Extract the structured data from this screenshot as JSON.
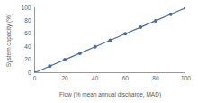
{
  "chart_data": {
    "type": "line",
    "x_label": "Flow (% mean annual discharge, MAD)",
    "y_label": "System capacity (%)",
    "x": [
      0,
      10,
      20,
      30,
      40,
      50,
      60,
      70,
      80,
      90,
      100
    ],
    "values": [
      0,
      10,
      20,
      30,
      40,
      50,
      60,
      70,
      80,
      90,
      100
    ],
    "color": "#4a6c9b",
    "marker": "circle",
    "line_style": "solid",
    "xlim": [
      0,
      100
    ],
    "xticks": [
      0,
      20,
      40,
      60,
      80,
      100
    ],
    "ylim": [
      0,
      100
    ],
    "yticks": [
      0,
      20,
      40,
      60,
      80,
      100
    ],
    "grid": false
  }
}
